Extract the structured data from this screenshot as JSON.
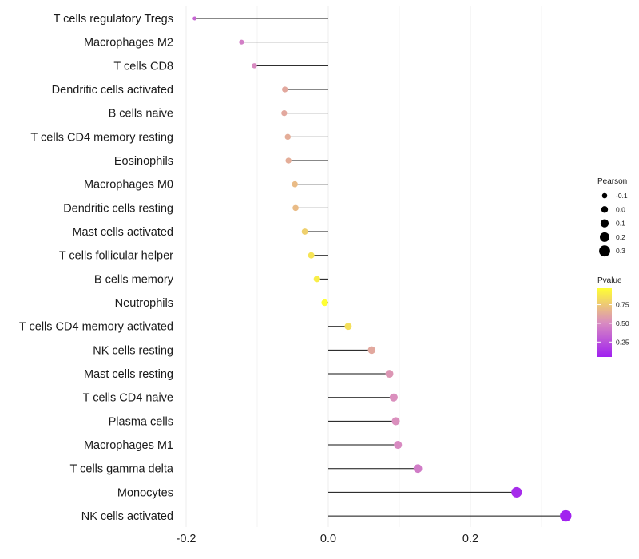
{
  "chart_data": {
    "type": "lollipop",
    "orientation": "horizontal",
    "categories": [
      "T cells regulatory  Tregs",
      "Macrophages M2",
      "T cells CD8",
      "Dendritic cells activated",
      "B cells naive",
      "T cells CD4 memory resting",
      "Eosinophils",
      "Macrophages M0",
      "Dendritic cells resting",
      "Mast cells activated",
      "T cells follicular helper",
      "B cells memory",
      "Neutrophils",
      "T cells CD4 memory activated",
      "NK cells resting",
      "Mast cells resting",
      "T cells CD4 naive",
      "Plasma cells",
      "Macrophages M1",
      "T cells gamma delta",
      "Monocytes",
      "NK cells activated"
    ],
    "values": [
      -0.188,
      -0.122,
      -0.104,
      -0.061,
      -0.062,
      -0.057,
      -0.056,
      -0.047,
      -0.046,
      -0.033,
      -0.024,
      -0.016,
      -0.005,
      0.028,
      0.061,
      0.086,
      0.092,
      0.095,
      0.098,
      0.126,
      0.265,
      0.334
    ],
    "pvalues": [
      0.35,
      0.45,
      0.5,
      0.62,
      0.62,
      0.64,
      0.64,
      0.7,
      0.7,
      0.78,
      0.86,
      0.9,
      0.97,
      0.84,
      0.62,
      0.55,
      0.52,
      0.52,
      0.5,
      0.44,
      0.1,
      0.06
    ],
    "xlim": [
      -0.2,
      0.35
    ],
    "x_ticks": [
      -0.2,
      0.0,
      0.2
    ],
    "x_tick_labels": [
      "-0.2",
      "0.0",
      "0.2"
    ],
    "xlabel": "",
    "ylabel": "",
    "grid": "vertical",
    "legend_size": {
      "title": "Pearson",
      "values": [
        -0.1,
        0.0,
        0.1,
        0.2,
        0.3
      ],
      "labels": [
        "-0.1",
        "0.0",
        "0.1",
        "0.2",
        "0.3"
      ]
    },
    "legend_color": {
      "title": "Pvalue",
      "ticks": [
        0.25,
        0.5,
        0.75
      ],
      "tick_labels": [
        "0.25",
        "0.50",
        "0.75"
      ],
      "range": [
        0.05,
        0.97
      ],
      "colors": [
        "#a020f0",
        "#d98cc0",
        "#ffff33"
      ]
    },
    "legend_position": "right"
  }
}
